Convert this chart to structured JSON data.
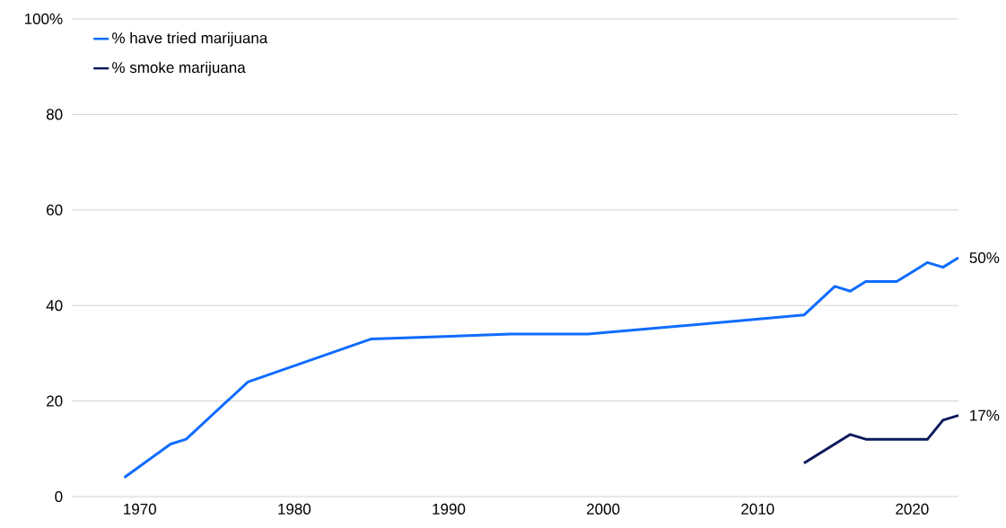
{
  "chart_data": {
    "type": "line",
    "xlim": [
      1965.6,
      2023
    ],
    "ylim": [
      0,
      100
    ],
    "xticks": [
      1970,
      1980,
      1990,
      2000,
      2010,
      2020
    ],
    "yticks": [
      0,
      20,
      40,
      60,
      80,
      {
        "value": 100,
        "label": "100%"
      }
    ],
    "grid": "y",
    "legend": "top left",
    "marker": "none",
    "line_style": "solid",
    "series": [
      {
        "name": "% have tried marijuana",
        "color": "#0f6cff",
        "x": [
          1969,
          1972,
          1973,
          1977,
          1985,
          1994,
          1999,
          2013,
          2015,
          2016,
          2017,
          2019,
          2021,
          2022,
          2023
        ],
        "values": [
          4,
          11,
          12,
          24,
          33,
          34,
          34,
          38,
          44,
          43,
          45,
          45,
          49,
          48,
          50
        ]
      },
      {
        "name": "% smoke marijuana",
        "color": "#0c1a5c",
        "x": [
          2013,
          2016,
          2017,
          2021,
          2022,
          2023
        ],
        "values": [
          7,
          13,
          12,
          12,
          16,
          17
        ]
      }
    ],
    "annotations": [
      {
        "text": "50%",
        "x": 2023,
        "y": 50
      },
      {
        "text": "17%",
        "x": 2023,
        "y": 17
      }
    ]
  }
}
